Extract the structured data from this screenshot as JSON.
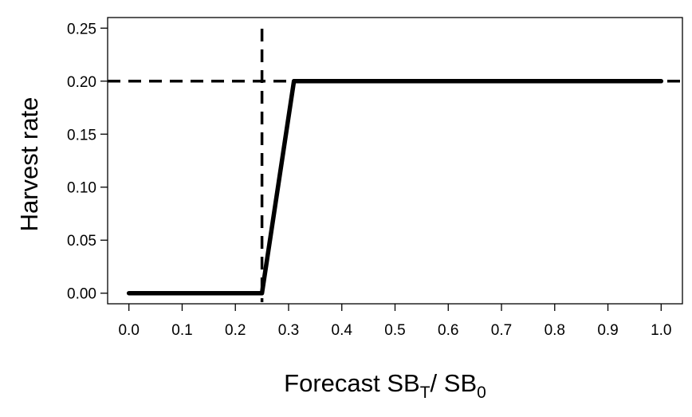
{
  "chart_data": {
    "type": "line",
    "title": "",
    "xlabel": {
      "main": "Forecast SB",
      "sub1": "T",
      "mid": "/ SB",
      "sub2": "0"
    },
    "ylabel": "Harvest rate",
    "xlim": [
      -0.04,
      1.04
    ],
    "ylim": [
      -0.01,
      0.26
    ],
    "x_ticks": [
      0.0,
      0.1,
      0.2,
      0.3,
      0.4,
      0.5,
      0.6,
      0.7,
      0.8,
      0.9,
      1.0
    ],
    "x_tick_labels": [
      "0.0",
      "0.1",
      "0.2",
      "0.3",
      "0.4",
      "0.5",
      "0.6",
      "0.7",
      "0.8",
      "0.9",
      "1.0"
    ],
    "y_ticks": [
      0.0,
      0.05,
      0.1,
      0.15,
      0.2,
      0.25
    ],
    "y_tick_labels": [
      "0.00",
      "0.05",
      "0.10",
      "0.15",
      "0.20",
      "0.25"
    ],
    "grid": false,
    "series": [
      {
        "style": "solid",
        "color": "#000000",
        "x": [
          0.0,
          0.25,
          0.31,
          1.0
        ],
        "y": [
          0.0,
          0.0,
          0.2,
          0.2
        ]
      }
    ],
    "reference_lines": [
      {
        "orientation": "vertical",
        "value": 0.25,
        "style": "dashed",
        "color": "#000000"
      },
      {
        "orientation": "horizontal",
        "value": 0.2,
        "style": "dashed",
        "color": "#000000"
      }
    ]
  }
}
